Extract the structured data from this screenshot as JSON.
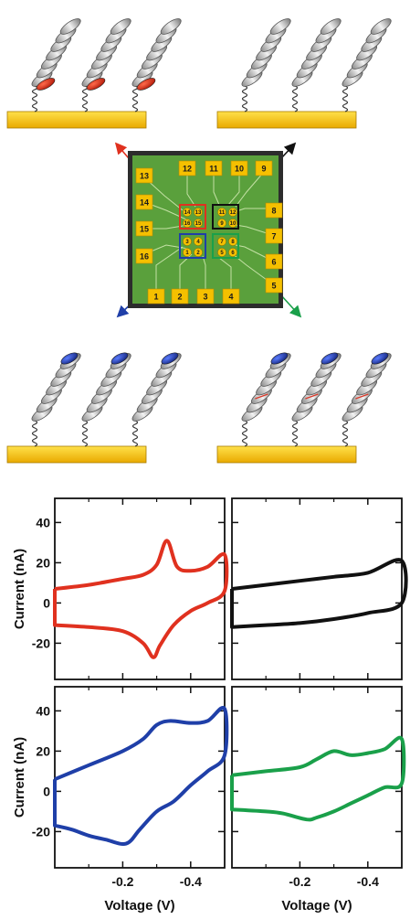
{
  "chip": {
    "pads": [
      "1",
      "2",
      "3",
      "4",
      "5",
      "6",
      "7",
      "8",
      "9",
      "10",
      "11",
      "12",
      "13",
      "14",
      "15",
      "16"
    ],
    "electrodes": [
      "1",
      "2",
      "3",
      "4",
      "5",
      "6",
      "7",
      "8",
      "9",
      "10",
      "11",
      "12",
      "13",
      "14",
      "15",
      "16"
    ]
  },
  "colors": {
    "red": "#e0311f",
    "black": "#111111",
    "blue": "#1f3fa8",
    "green": "#1aa04a",
    "gold": "#f5c000",
    "chip_green": "#5aa03c"
  },
  "chart_data": [
    {
      "type": "line",
      "panel": "top-left",
      "color": "red",
      "ylabel": "Current (nA)",
      "xlabel": "",
      "xlim": [
        0.0,
        -0.5
      ],
      "ylim": [
        -38,
        52
      ],
      "yticks": [
        "40",
        "20",
        "0",
        "-20"
      ],
      "xticks": [],
      "cathodic": {
        "x": [
          0.0,
          -0.1,
          -0.2,
          -0.26,
          -0.3,
          -0.33,
          -0.36,
          -0.4,
          -0.45,
          -0.5
        ],
        "y": [
          7,
          9,
          12,
          14,
          19,
          31,
          18,
          16,
          18,
          24
        ]
      },
      "anodic": {
        "x": [
          -0.5,
          -0.45,
          -0.4,
          -0.35,
          -0.31,
          -0.29,
          -0.26,
          -0.2,
          -0.1,
          0.0
        ],
        "y": [
          6,
          0,
          -4,
          -11,
          -21,
          -27,
          -20,
          -14,
          -12,
          -11
        ]
      }
    },
    {
      "type": "line",
      "panel": "top-right",
      "color": "black",
      "xlim": [
        0.0,
        -0.5
      ],
      "ylim": [
        -38,
        52
      ],
      "cathodic": {
        "x": [
          0.0,
          -0.1,
          -0.2,
          -0.3,
          -0.4,
          -0.5
        ],
        "y": [
          7,
          9,
          11,
          13,
          15,
          21
        ]
      },
      "anodic": {
        "x": [
          -0.5,
          -0.4,
          -0.3,
          -0.2,
          -0.1,
          0.0
        ],
        "y": [
          0,
          -5,
          -8,
          -10,
          -11,
          -12
        ]
      }
    },
    {
      "type": "line",
      "panel": "bottom-left",
      "color": "blue",
      "ylabel": "Current (nA)",
      "xlabel": "Voltage (V)",
      "xlim": [
        0.0,
        -0.5
      ],
      "ylim": [
        -38,
        52
      ],
      "yticks": [
        "40",
        "20",
        "0",
        "-20"
      ],
      "xticks": [
        "-0.2",
        "-0.4"
      ],
      "cathodic": {
        "x": [
          0.0,
          -0.1,
          -0.2,
          -0.26,
          -0.3,
          -0.34,
          -0.4,
          -0.45,
          -0.5
        ],
        "y": [
          6,
          13,
          20,
          26,
          33,
          35,
          34,
          35,
          41
        ]
      },
      "anodic": {
        "x": [
          -0.5,
          -0.45,
          -0.4,
          -0.35,
          -0.3,
          -0.25,
          -0.21,
          -0.15,
          -0.1,
          -0.05,
          0.0
        ],
        "y": [
          18,
          10,
          3,
          -5,
          -10,
          -19,
          -26,
          -24,
          -22,
          -19,
          -17
        ]
      }
    },
    {
      "type": "line",
      "panel": "bottom-right",
      "color": "green",
      "xlabel": "Voltage (V)",
      "xlim": [
        0.0,
        -0.5
      ],
      "ylim": [
        -38,
        52
      ],
      "xticks": [
        "-0.2",
        "-0.4"
      ],
      "cathodic": {
        "x": [
          0.0,
          -0.1,
          -0.2,
          -0.25,
          -0.3,
          -0.35,
          -0.4,
          -0.45,
          -0.5
        ],
        "y": [
          8,
          10,
          12,
          16,
          20,
          18,
          19,
          21,
          26
        ]
      },
      "anodic": {
        "x": [
          -0.5,
          -0.45,
          -0.4,
          -0.35,
          -0.3,
          -0.25,
          -0.22,
          -0.15,
          -0.1,
          0.0
        ],
        "y": [
          4,
          2,
          -2,
          -6,
          -10,
          -13,
          -14,
          -11,
          -10,
          -9
        ]
      }
    }
  ]
}
